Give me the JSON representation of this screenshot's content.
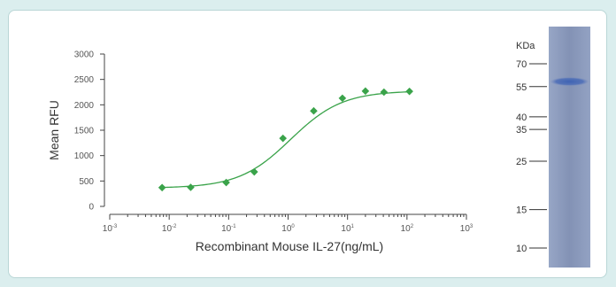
{
  "chart_data": {
    "type": "scatter",
    "xlabel": "Recombinant Mouse IL-27(ng/mL)",
    "ylabel": "Mean RFU",
    "x_scale": "log",
    "xlim": [
      0.001,
      1000
    ],
    "ylim": [
      0,
      3000
    ],
    "yticks": [
      0,
      500,
      1000,
      1500,
      2000,
      2500,
      3000
    ],
    "xticks": [
      {
        "base": "10",
        "exp": "-3",
        "value": 0.001
      },
      {
        "base": "10",
        "exp": "-2",
        "value": 0.01
      },
      {
        "base": "10",
        "exp": "-1",
        "value": 0.1
      },
      {
        "base": "10",
        "exp": "0",
        "value": 1
      },
      {
        "base": "10",
        "exp": "1",
        "value": 10
      },
      {
        "base": "10",
        "exp": "2",
        "value": 100
      },
      {
        "base": "10",
        "exp": "3",
        "value": 1000
      }
    ],
    "grid": false,
    "series": [
      {
        "color": "#3aa34a",
        "marker": "diamond",
        "x": [
          0.0076,
          0.023,
          0.091,
          0.27,
          0.82,
          2.7,
          8.2,
          20,
          41,
          110
        ],
        "y": [
          370,
          375,
          470,
          680,
          1340,
          1880,
          2130,
          2270,
          2250,
          2265
        ]
      }
    ],
    "fit": {
      "bottom": 360,
      "top": 2275,
      "ec50": 1.1,
      "hill": 1.0,
      "color": "#3aa34a"
    }
  },
  "gel": {
    "unit": "KDa",
    "markers": [
      {
        "label": "70",
        "kda": 70
      },
      {
        "label": "55",
        "kda": 55
      },
      {
        "label": "40",
        "kda": 40
      },
      {
        "label": "35",
        "kda": 35
      },
      {
        "label": "25",
        "kda": 25
      },
      {
        "label": "15",
        "kda": 15
      },
      {
        "label": "10",
        "kda": 10
      }
    ],
    "lane_color": "#8898ba",
    "band_color": "#4f6fb8",
    "band_kda": 58
  }
}
